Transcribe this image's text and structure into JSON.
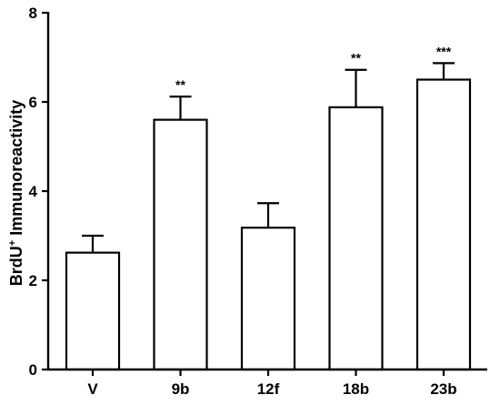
{
  "chart_data": {
    "type": "bar",
    "categories": [
      "V",
      "9b",
      "12f",
      "18b",
      "23b"
    ],
    "values": [
      2.62,
      5.6,
      3.18,
      5.88,
      6.5
    ],
    "errors": [
      0.38,
      0.52,
      0.55,
      0.84,
      0.37
    ],
    "significance": [
      "",
      "**",
      "",
      "**",
      "***"
    ],
    "ylabel": {
      "main": "BrdU",
      "sup": "+",
      "rest": " Immunoreactivity"
    },
    "xlabel": "",
    "ylim": [
      0,
      8
    ],
    "yticks": [
      0,
      2,
      4,
      6,
      8
    ],
    "grid": false,
    "colors": {
      "bar_fill": "#ffffff",
      "bar_stroke": "#000000",
      "axis": "#000000"
    }
  }
}
